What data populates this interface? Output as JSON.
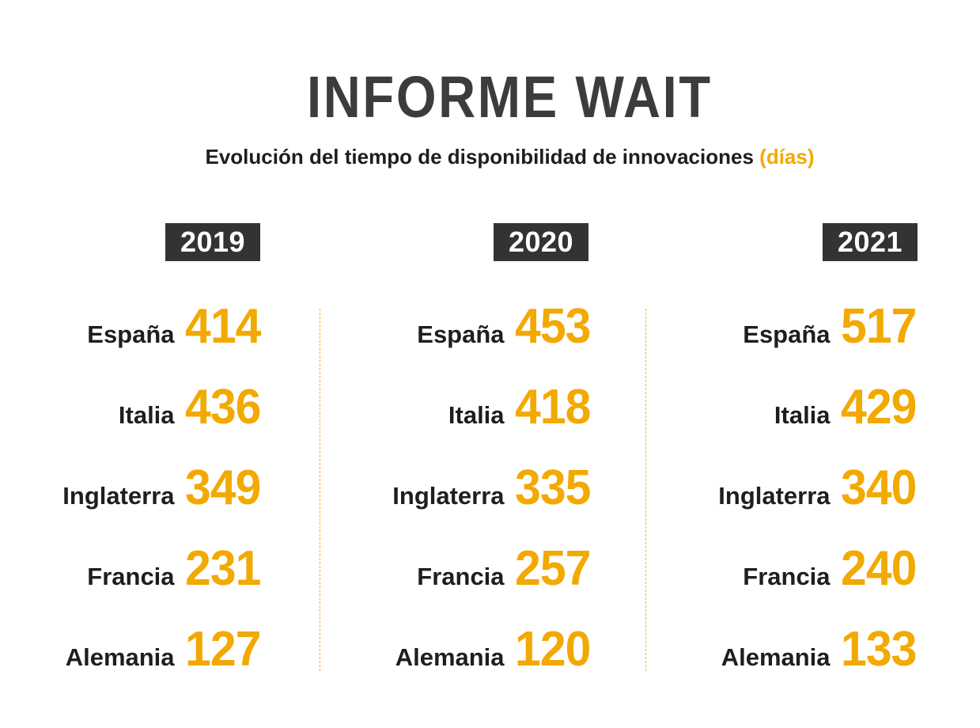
{
  "title": "INFORME WAIT",
  "subtitle": {
    "text": "Evolución del tiempo de disponibilidad de innovaciones",
    "unit": "(días)"
  },
  "colors": {
    "accent": "#f2a900",
    "badge_bg": "#333333",
    "title": "#3c3c3c",
    "text": "#1e1e1e"
  },
  "chart_data": {
    "type": "table",
    "title": "INFORME WAIT",
    "subtitle": "Evolución del tiempo de disponibilidad de innovaciones (días)",
    "unit": "días",
    "categories": [
      "España",
      "Italia",
      "Inglaterra",
      "Francia",
      "Alemania"
    ],
    "columns": [
      {
        "year": "2019",
        "rows": [
          {
            "country": "España",
            "value": 414
          },
          {
            "country": "Italia",
            "value": 436
          },
          {
            "country": "Inglaterra",
            "value": 349
          },
          {
            "country": "Francia",
            "value": 231
          },
          {
            "country": "Alemania",
            "value": 127
          }
        ]
      },
      {
        "year": "2020",
        "rows": [
          {
            "country": "España",
            "value": 453
          },
          {
            "country": "Italia",
            "value": 418
          },
          {
            "country": "Inglaterra",
            "value": 335
          },
          {
            "country": "Francia",
            "value": 257
          },
          {
            "country": "Alemania",
            "value": 120
          }
        ]
      },
      {
        "year": "2021",
        "rows": [
          {
            "country": "España",
            "value": 517
          },
          {
            "country": "Italia",
            "value": 429
          },
          {
            "country": "Inglaterra",
            "value": 340
          },
          {
            "country": "Francia",
            "value": 240
          },
          {
            "country": "Alemania",
            "value": 133
          }
        ]
      }
    ]
  }
}
